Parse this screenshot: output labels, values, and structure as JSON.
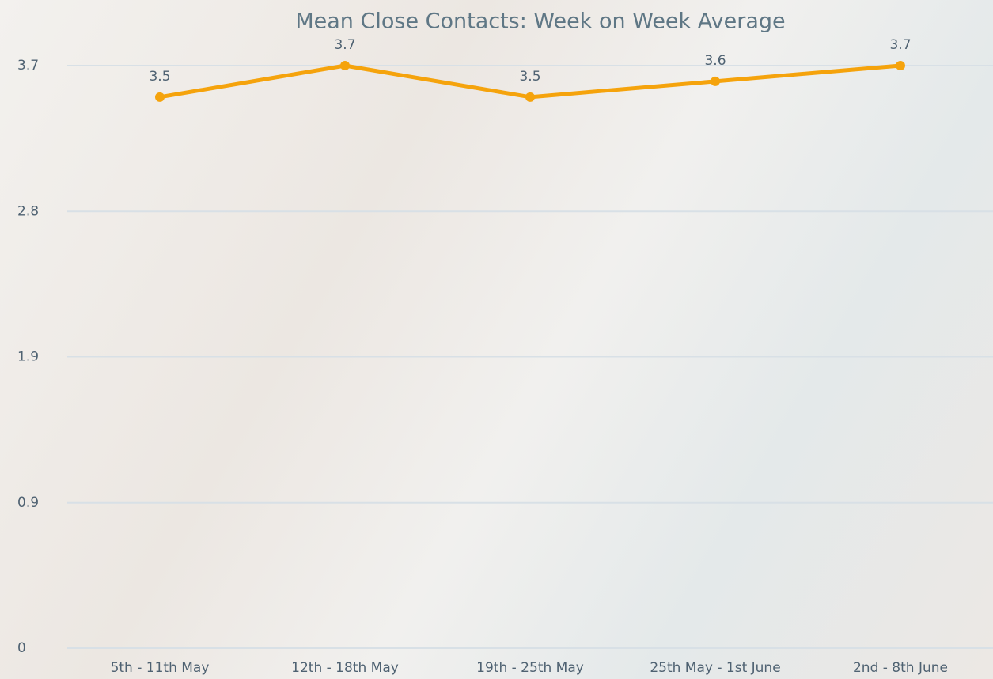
{
  "chart_data": {
    "type": "line",
    "title": "Mean Close Contacts: Week on Week Average",
    "categories": [
      "5th - 11th May",
      "12th - 18th May",
      "19th - 25th May",
      "25th May - 1st June",
      "2nd - 8th June"
    ],
    "values": [
      3.5,
      3.7,
      3.5,
      3.6,
      3.7
    ],
    "color": "#f5a30c",
    "ylim": [
      0,
      3.7
    ],
    "yticks": [
      0,
      {
        "value": 0.925,
        "label": "0.9"
      },
      {
        "value": 1.85,
        "label": "1.9"
      },
      {
        "value": 2.775,
        "label": "2.8"
      },
      3.7
    ],
    "grid": true
  }
}
